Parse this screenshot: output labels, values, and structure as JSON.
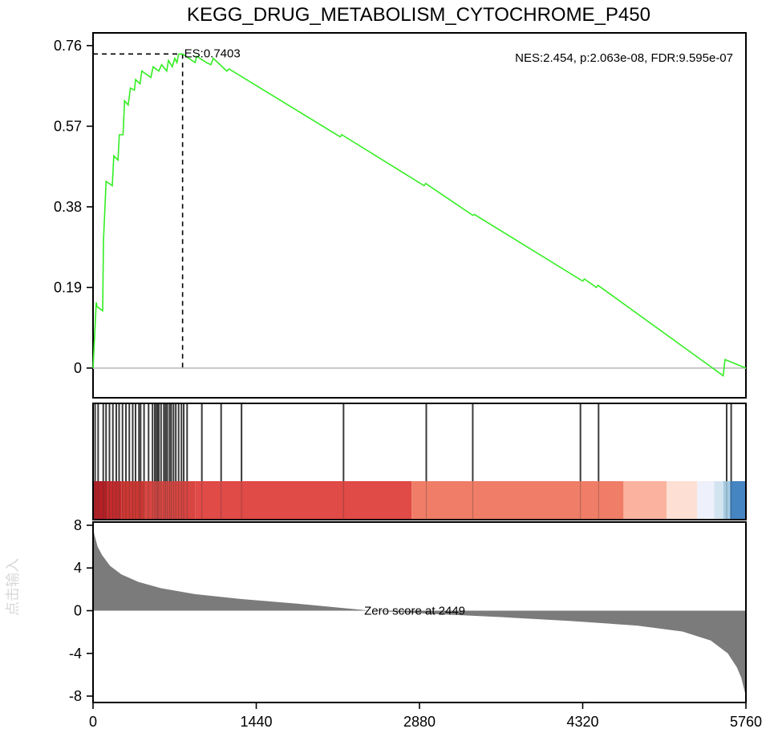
{
  "chart_data": {
    "type": "line",
    "title": "KEGG_DRUG_METABOLISM_CYTOCHROME_P450",
    "stats_label": "NES:2.454, p:2.063e-08, FDR:9.595e-07",
    "es_label": "ES:0.7403",
    "peak": {
      "rank": 790,
      "es": 0.7403
    },
    "xlim": [
      0,
      5760
    ],
    "x_ticks": [
      "0",
      "1440",
      "2880",
      "4320",
      "5760"
    ],
    "x_tick_values": [
      0,
      1440,
      2880,
      4320,
      5760
    ],
    "es_panel": {
      "ylim": [
        -0.07,
        0.79
      ],
      "y_ticks": [
        "0",
        "0.19",
        "0.38",
        "0.57",
        "0.76"
      ],
      "y_tick_values": [
        0,
        0.19,
        0.38,
        0.57,
        0.76
      ],
      "line_color": "#33ee22",
      "points": [
        [
          0,
          0
        ],
        [
          28,
          0.155
        ],
        [
          35,
          0.145
        ],
        [
          85,
          0.135
        ],
        [
          92,
          0.3
        ],
        [
          115,
          0.44
        ],
        [
          170,
          0.43
        ],
        [
          183,
          0.5
        ],
        [
          220,
          0.49
        ],
        [
          232,
          0.55
        ],
        [
          265,
          0.55
        ],
        [
          278,
          0.63
        ],
        [
          310,
          0.62
        ],
        [
          330,
          0.66
        ],
        [
          365,
          0.655
        ],
        [
          375,
          0.68
        ],
        [
          415,
          0.67
        ],
        [
          430,
          0.7
        ],
        [
          510,
          0.685
        ],
        [
          530,
          0.71
        ],
        [
          580,
          0.7
        ],
        [
          605,
          0.715
        ],
        [
          650,
          0.7
        ],
        [
          665,
          0.725
        ],
        [
          700,
          0.71
        ],
        [
          720,
          0.73
        ],
        [
          740,
          0.72
        ],
        [
          755,
          0.74
        ],
        [
          790,
          0.7403
        ],
        [
          900,
          0.72
        ],
        [
          915,
          0.735
        ],
        [
          1000,
          0.72
        ],
        [
          1040,
          0.715
        ],
        [
          1060,
          0.73
        ],
        [
          1180,
          0.7
        ],
        [
          1200,
          0.705
        ],
        [
          2180,
          0.545
        ],
        [
          2195,
          0.55
        ],
        [
          2920,
          0.43
        ],
        [
          2935,
          0.435
        ],
        [
          3350,
          0.36
        ],
        [
          3365,
          0.362
        ],
        [
          4320,
          0.205
        ],
        [
          4335,
          0.21
        ],
        [
          4440,
          0.19
        ],
        [
          4455,
          0.195
        ],
        [
          5560,
          -0.018
        ],
        [
          5575,
          0.02
        ],
        [
          5760,
          0
        ]
      ]
    },
    "hit_panel": {
      "hits": [
        18,
        45,
        90,
        115,
        145,
        175,
        205,
        230,
        260,
        290,
        320,
        350,
        375,
        405,
        420,
        450,
        490,
        525,
        545,
        560,
        570,
        580,
        600,
        625,
        640,
        655,
        675,
        690,
        710,
        730,
        755,
        780,
        800,
        830,
        960,
        1130,
        1310,
        2210,
        2940,
        3350,
        4300,
        4460,
        5590,
        5630
      ],
      "heat_segments": [
        {
          "from": 0,
          "to": 120,
          "color": "#b41f25"
        },
        {
          "from": 120,
          "to": 250,
          "color": "#c52a2c"
        },
        {
          "from": 250,
          "to": 450,
          "color": "#cf3732"
        },
        {
          "from": 450,
          "to": 900,
          "color": "#d94541"
        },
        {
          "from": 900,
          "to": 2810,
          "color": "#e04a47"
        },
        {
          "from": 2810,
          "to": 4680,
          "color": "#f07d67"
        },
        {
          "from": 4680,
          "to": 5060,
          "color": "#fbb39f"
        },
        {
          "from": 5060,
          "to": 5330,
          "color": "#fde0d3"
        },
        {
          "from": 5330,
          "to": 5480,
          "color": "#eef0fb"
        },
        {
          "from": 5480,
          "to": 5560,
          "color": "#d3e4f1"
        },
        {
          "from": 5560,
          "to": 5620,
          "color": "#a6cce3"
        },
        {
          "from": 5620,
          "to": 5760,
          "color": "#4585c2"
        }
      ]
    },
    "rank_panel": {
      "ylim": [
        -8.6,
        8.3
      ],
      "y_ticks": [
        "-8",
        "-4",
        "0",
        "4",
        "8"
      ],
      "y_tick_values": [
        -8,
        -4,
        0,
        4,
        8
      ],
      "zero_label": "Zero score at 2449",
      "zero_rank": 2449,
      "fill_color": "#7b7b7b",
      "profile": [
        [
          0,
          8.2
        ],
        [
          10,
          7.2
        ],
        [
          40,
          6.0
        ],
        [
          80,
          5.2
        ],
        [
          150,
          4.2
        ],
        [
          250,
          3.4
        ],
        [
          400,
          2.7
        ],
        [
          600,
          2.1
        ],
        [
          900,
          1.55
        ],
        [
          1300,
          1.1
        ],
        [
          1800,
          0.65
        ],
        [
          2449,
          0
        ],
        [
          3000,
          -0.3
        ],
        [
          3600,
          -0.6
        ],
        [
          4200,
          -0.95
        ],
        [
          4800,
          -1.4
        ],
        [
          5200,
          -1.95
        ],
        [
          5450,
          -2.8
        ],
        [
          5600,
          -4.0
        ],
        [
          5680,
          -5.3
        ],
        [
          5720,
          -6.3
        ],
        [
          5740,
          -7.2
        ],
        [
          5760,
          -8.0
        ]
      ]
    },
    "ylabel_rank": "点击输入"
  }
}
